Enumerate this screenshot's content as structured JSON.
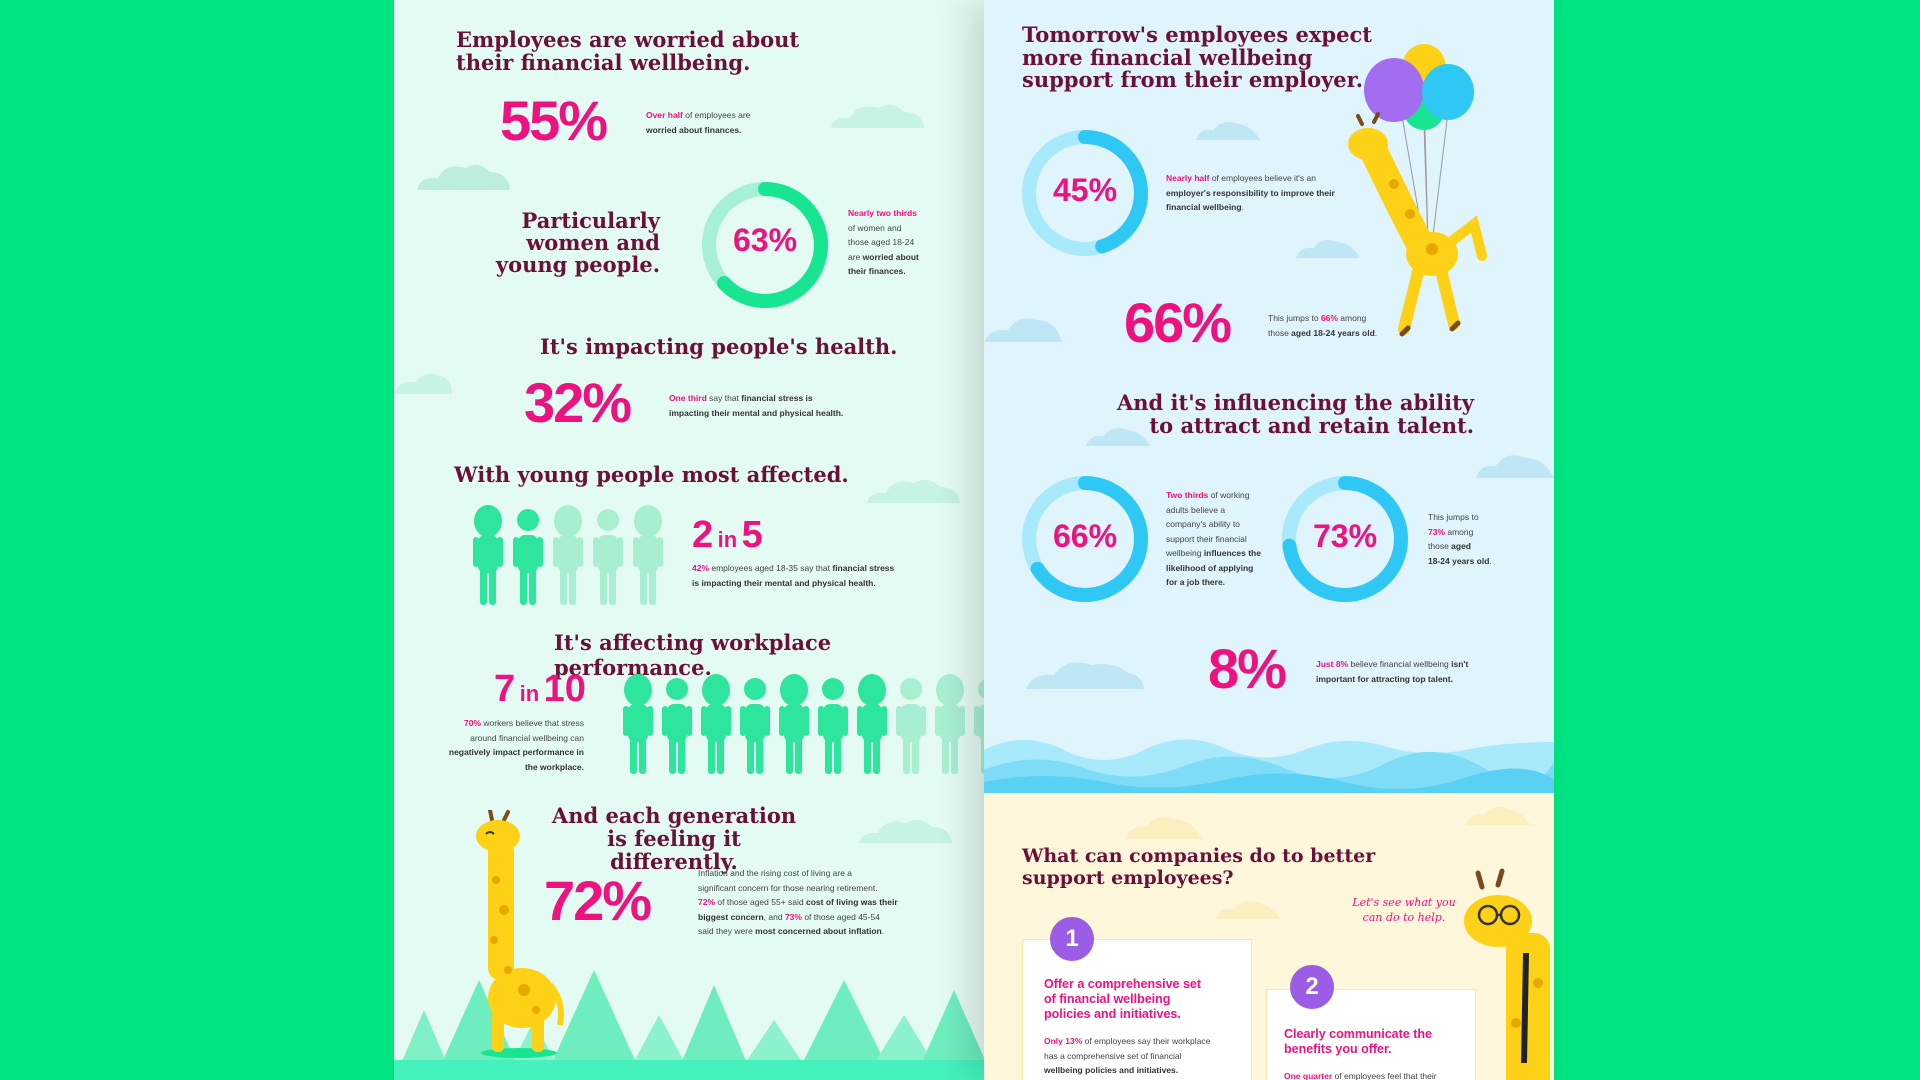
{
  "left": {
    "h1": [
      "Employees are worried about",
      "their financial wellbeing."
    ],
    "stat55": {
      "value": "55%",
      "hl": "Over half",
      "text1": " of employees are",
      "text2": "worried about finances."
    },
    "h2": [
      "Particularly",
      "women and",
      "young people."
    ],
    "stat63": {
      "value": "63%",
      "progress": 0.63,
      "hl": "Nearly two thirds",
      "lines": [
        "of women and",
        "those aged 18-24",
        "are"
      ],
      "em1": " worried about",
      "em2": "their finances."
    },
    "h3": "It's impacting people's health.",
    "stat32": {
      "value": "32%",
      "hl": "One third",
      "t1": " say that ",
      "em1": "financial stress is",
      "em2": "impacting their mental and physical health."
    },
    "h4": "With young people most affected.",
    "stat2in5": {
      "num1": "2",
      "in": "in",
      "num2": "5",
      "hl": "42%",
      "t1": " employees aged 18-35 say that ",
      "em1": "financial stress",
      "em2": "is impacting their mental and physical health.",
      "highlighted": 2,
      "total": 5
    },
    "h5": "It's affecting workplace performance.",
    "stat7in10": {
      "num1": "7",
      "in": "in",
      "num2": "10",
      "hl": "70%",
      "t1": " workers believe that stress",
      "l2": "around financial wellbeing can",
      "em1": "negatively impact performance in",
      "em2": "the workplace.",
      "highlighted": 7,
      "total": 10
    },
    "h6": [
      "And each generation",
      "is feeling it differently."
    ],
    "stat72": {
      "value": "72%",
      "l1": "Inflation and the rising cost of living are a",
      "l2": "significant concern for those nearing retirement.",
      "hl1": "72%",
      "t1": " of those aged 55+ said ",
      "em1": "cost of living was their",
      "em2": "biggest concern",
      "t2": ", and ",
      "hl2": "73%",
      "t3": " of those aged 45-54",
      "t4": "said they were ",
      "em3": "most concerned about inflation",
      "t5": "."
    }
  },
  "right": {
    "h1": [
      "Tomorrow's employees expect",
      "more financial wellbeing",
      "support from their employer."
    ],
    "stat45": {
      "value": "45%",
      "progress": 0.45,
      "hl": "Nearly half",
      "t1": " of employees believe it's an",
      "em1": "employer's responsibility to improve their",
      "em2": "financial wellbeing",
      "t2": "."
    },
    "stat66a": {
      "value": "66%",
      "t1": "This jumps to ",
      "hl": "66%",
      "t2": " among",
      "t3": "those ",
      "em": "aged 18-24 years old",
      "t4": "."
    },
    "h2": [
      "And it's influencing the ability",
      "to attract and retain talent."
    ],
    "stat66b": {
      "value": "66%",
      "progress": 0.66,
      "hl": "Two thirds",
      "t1": " of working",
      "lines": [
        "adults believe a",
        "company's ability to",
        "support their financial"
      ],
      "l5": "wellbeing ",
      "em1": "influences the",
      "em2": "likelihood of applying",
      "em3": "for a job there."
    },
    "stat73": {
      "value": "73%",
      "progress": 0.73,
      "l1": "This jumps to",
      "hl": "73%",
      "t1": " among",
      "l3": "those ",
      "em1": "aged",
      "em2": "18-24  years old",
      "t2": "."
    },
    "stat8": {
      "value": "8%",
      "hl": "Just 8%",
      "t1": " believe financial wellbeing ",
      "em1": "isn't",
      "em2": "important for attracting top talent."
    },
    "h3": [
      "What can companies do to better",
      "support employees?"
    ],
    "speech": [
      "Let's see what you",
      "can do to help."
    ],
    "card1": {
      "num": "1",
      "title": [
        "Offer a comprehensive set",
        "of financial wellbeing",
        "policies and initiatives."
      ],
      "hl": "Only 13%",
      "t1": " of employees say their workplace",
      "l2": "has a comprehensive set of financial",
      "em": "wellbeing policies and initiatives."
    },
    "card2": {
      "num": "2",
      "title": [
        "Clearly communicate the",
        "benefits you offer."
      ],
      "hl": "One quarter",
      "t1": " of employees feel that their"
    }
  },
  "colors": {
    "pink": "#ee1281",
    "maroon": "#6b1038",
    "green": "#17e592",
    "mint": "#a6f1d6",
    "blue": "#2fc8f5",
    "lightblue": "#a8e9fb",
    "purple": "#9b5de5",
    "bg": "#00e383"
  }
}
